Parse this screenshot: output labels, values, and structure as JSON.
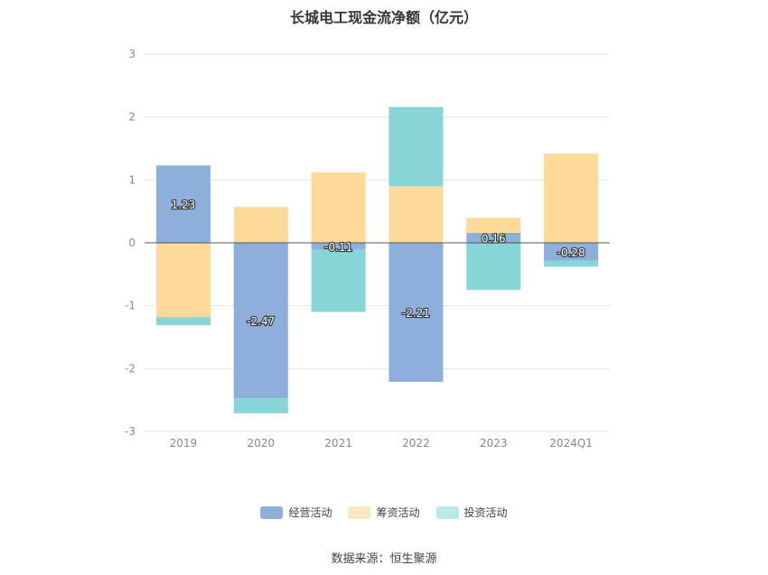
{
  "chart_data": {
    "type": "bar",
    "stacked": true,
    "title": "长城电工现金流净额（亿元）",
    "categories": [
      "2019",
      "2020",
      "2021",
      "2022",
      "2023",
      "2024Q1"
    ],
    "series": [
      {
        "name": "经营活动",
        "color": "#8eaedc",
        "values": [
          1.23,
          -2.47,
          -0.11,
          -2.21,
          0.16,
          -0.28
        ],
        "labels": [
          "1.23",
          "-2.47",
          "-0.11",
          "-2.21",
          "0.16",
          "-0.28"
        ]
      },
      {
        "name": "筹资活动",
        "color": "#fdd99a",
        "values": [
          -1.18,
          0.57,
          1.12,
          0.9,
          0.24,
          1.42
        ]
      },
      {
        "name": "投资活动",
        "color": "#88d5d8",
        "values": [
          -0.13,
          -0.24,
          -0.99,
          1.26,
          -0.75,
          -0.1
        ]
      }
    ],
    "yticks": [
      "3",
      "2",
      "1",
      "0",
      "-1",
      "-2",
      "-3"
    ],
    "ylim": [
      -3,
      3
    ],
    "grid": true,
    "legend_position": "bottom"
  },
  "legend": [
    {
      "label": "经营活动",
      "color": "#8eaedc"
    },
    {
      "label": "筹资活动",
      "color": "#fde7c2"
    },
    {
      "label": "投资活动",
      "color": "#bde8e9"
    }
  ],
  "source": "数据来源：恒生聚源"
}
